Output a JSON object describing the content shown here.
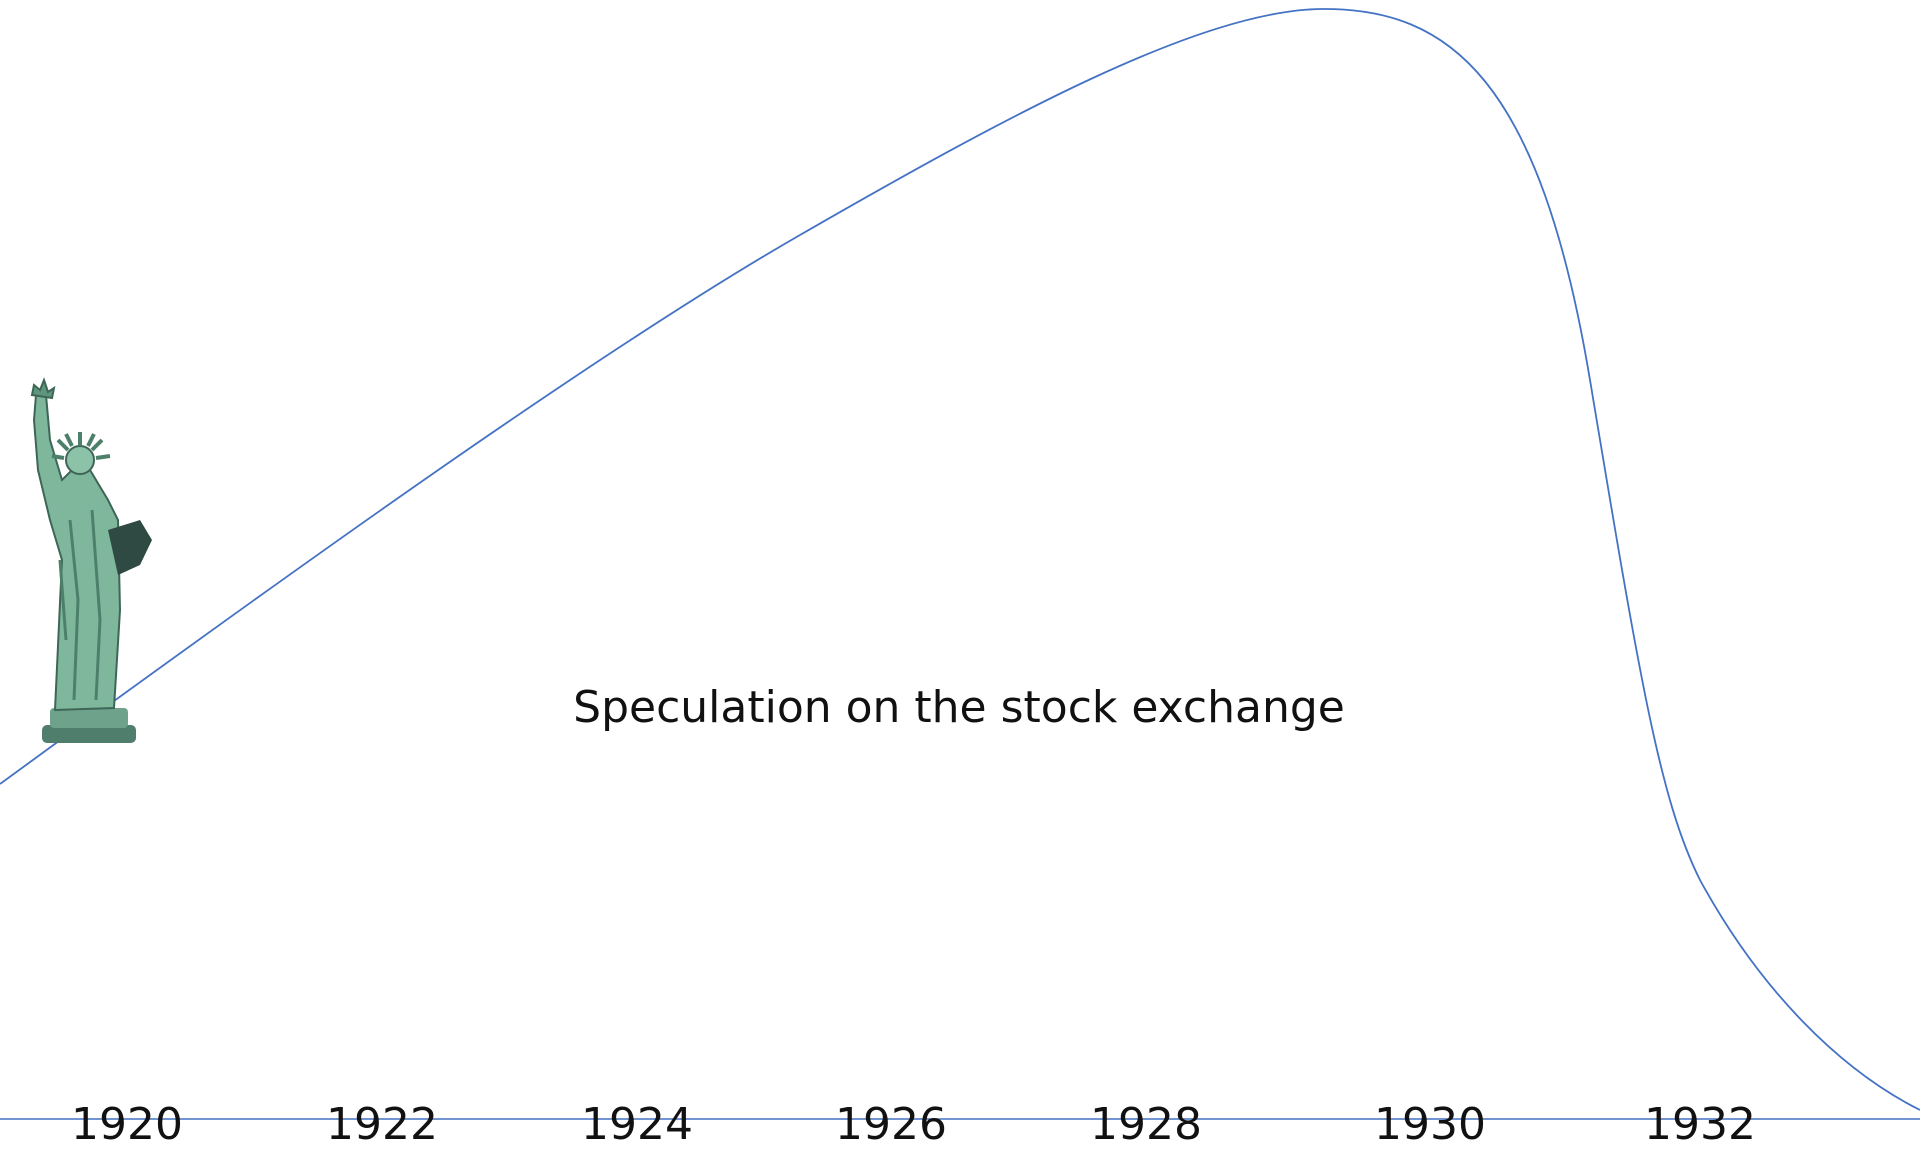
{
  "caption": "Speculation on the stock exchange",
  "timeline": {
    "years": [
      "1920",
      "1922",
      "1924",
      "1926",
      "1928",
      "1930",
      "1932"
    ]
  }
}
